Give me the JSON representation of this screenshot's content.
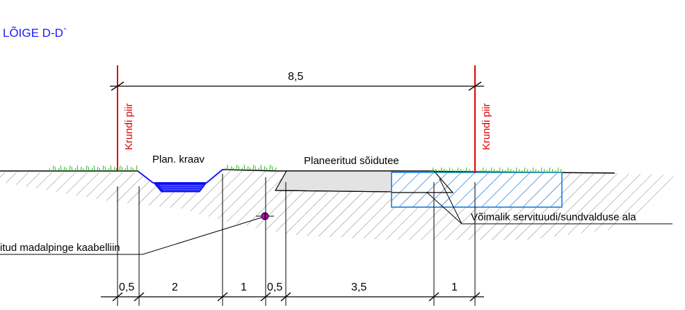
{
  "title": "LÕIGE D-D`",
  "boundary": {
    "left_label": "Krundi piir",
    "right_label": "Krundi piir"
  },
  "overall_dimension": "8,5",
  "labels": {
    "ditch": "Plan. kraav",
    "road": "Planeeritud sõidutee",
    "servitude": "Võimalik servituudi/sundvalduse ala",
    "cable": "itud madalpinge kaabelliin"
  },
  "dimensions": [
    "0,5",
    "2",
    "1",
    "0,5",
    "3,5",
    "1"
  ],
  "colors": {
    "title": "#1a1aff",
    "boundary": "#e00000",
    "grass": "#22bb22",
    "ditch": "#1a1aff",
    "servitude": "#1a7adf",
    "cable": "#cc00cc"
  }
}
